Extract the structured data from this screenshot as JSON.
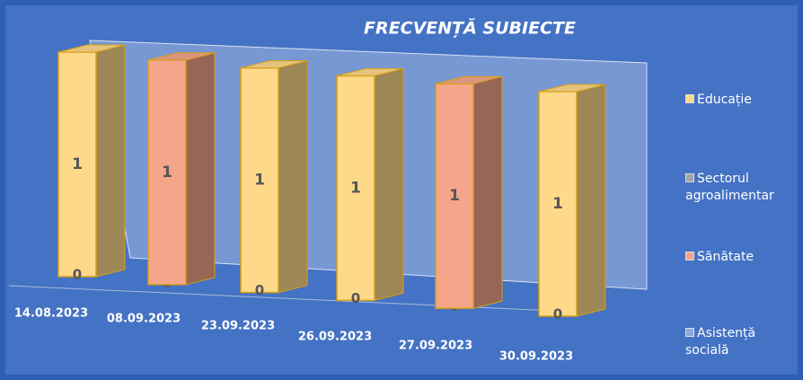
{
  "chart_data": {
    "type": "bar3d_stacked",
    "title": "FRECVENȚĂ SUBIECTE",
    "categories": [
      "14.08.2023",
      "08.09.2023",
      "23.09.2023",
      "26.09.2023",
      "27.09.2023",
      "30.09.2023"
    ],
    "ylim": [
      0,
      1
    ],
    "series": [
      {
        "name": "Educație",
        "color": "#ffd98a",
        "values": [
          1,
          0,
          1,
          1,
          0,
          1
        ]
      },
      {
        "name": "Sectorul agroalimentar",
        "color": "#a5a5a5",
        "values": [
          0,
          0,
          0,
          0,
          0,
          0
        ]
      },
      {
        "name": "Sănătate",
        "color": "#f4a58a",
        "values": [
          0,
          1,
          0,
          0,
          1,
          0
        ]
      },
      {
        "name": "Asistență socială",
        "color": "#8fa8d8",
        "values": [
          0,
          0,
          0,
          0,
          0,
          0
        ]
      }
    ],
    "legend": "right"
  }
}
